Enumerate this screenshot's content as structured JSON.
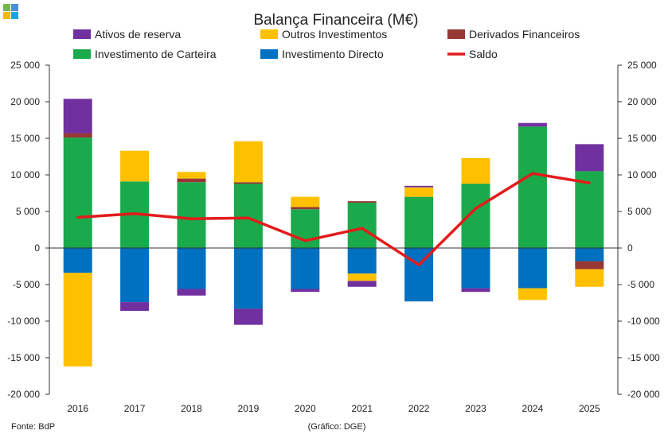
{
  "chart_data": {
    "type": "bar",
    "subtype": "stacked-bar-with-line",
    "title": "Balança Financeira (M€)",
    "categories": [
      "2016",
      "2017",
      "2018",
      "2019",
      "2020",
      "2021",
      "2022",
      "2023",
      "2024",
      "2025"
    ],
    "series": [
      {
        "name": "Investimento de Carteira",
        "color": "#1aaa4b",
        "values": [
          15100,
          9100,
          9000,
          8800,
          5300,
          6200,
          7000,
          8800,
          16600,
          10500
        ]
      },
      {
        "name": "Derivados Financeiros",
        "color": "#953735",
        "values": [
          600,
          0,
          500,
          200,
          300,
          200,
          0,
          0,
          0,
          -1100
        ]
      },
      {
        "name": "Outros Investimentos",
        "color": "#ffc000",
        "values": [
          -12800,
          4200,
          900,
          5600,
          1400,
          -1000,
          1300,
          3500,
          -1600,
          -2400
        ]
      },
      {
        "name": "Ativos de reserva",
        "color": "#7030a0",
        "values": [
          4700,
          -1200,
          -900,
          -2200,
          -400,
          -800,
          200,
          -500,
          500,
          3700
        ]
      },
      {
        "name": "Investimento Directo",
        "color": "#0070c0",
        "values": [
          -3400,
          -7400,
          -5600,
          -8300,
          -5600,
          -3500,
          -7300,
          -5500,
          -5500,
          -1800
        ]
      },
      {
        "name": "Saldo",
        "type": "line",
        "color": "#e31b1b",
        "values": [
          4200,
          4700,
          4000,
          4100,
          1000,
          2700,
          -2300,
          5400,
          10200,
          8900
        ]
      }
    ],
    "ylim": [
      -20000,
      25000
    ],
    "y_ticks": [
      25000,
      20000,
      15000,
      10000,
      5000,
      0,
      -5000,
      -10000,
      -15000,
      -20000
    ],
    "y_tick_labels": [
      "25 000",
      "20 000",
      "15 000",
      "10 000",
      "5 000",
      "0",
      "-5 000",
      "-10 000",
      "-15 000",
      "-20 000"
    ],
    "y_axis_right": true,
    "legend_position": "top",
    "legend_order": [
      "Ativos de reserva",
      "Outros Investimentos",
      "Derivados Financeiros",
      "Investimento de Carteira",
      "Investimento Directo",
      "Saldo"
    ],
    "grid": false,
    "source_note": "Fonte: BdP",
    "credit_note": "(Gráfico: DGE)"
  },
  "logo": {
    "colors": [
      "#7ab648",
      "#4a90d9",
      "#f5b800",
      "#1aa3e0"
    ]
  }
}
